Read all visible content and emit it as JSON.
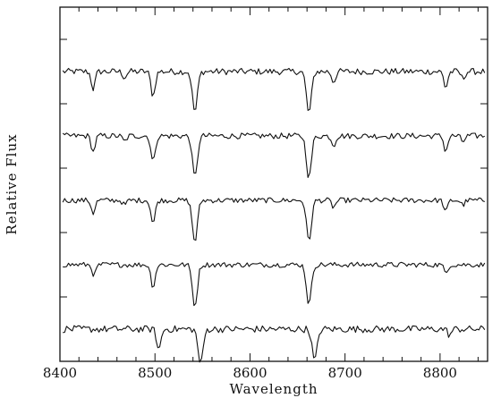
{
  "chart_data": {
    "type": "line",
    "title": "",
    "xlabel": "Wavelength",
    "ylabel": "Relative Flux",
    "xlim": [
      8400,
      8850
    ],
    "xticks": [
      8400,
      8500,
      8600,
      8700,
      8800
    ],
    "x_minor_step": 20,
    "ylim": [
      0,
      5.5
    ],
    "y_tick_count": 5,
    "grid": false,
    "legend": "none",
    "wavelength_step": 2,
    "continuum": 1.0,
    "series": [
      {
        "offset": 4.5,
        "noise": 0.055,
        "lines": [
          [
            8435,
            0.3,
            2
          ],
          [
            8468,
            0.1,
            2
          ],
          [
            8498,
            0.42,
            2.2
          ],
          [
            8542,
            0.7,
            2.6
          ],
          [
            8662,
            0.72,
            2.6
          ],
          [
            8688,
            0.18,
            2
          ],
          [
            8806,
            0.28,
            2
          ],
          [
            8824,
            0.12,
            2
          ]
        ]
      },
      {
        "offset": 3.5,
        "noise": 0.05,
        "lines": [
          [
            8435,
            0.28,
            2
          ],
          [
            8468,
            0.1,
            2
          ],
          [
            8498,
            0.45,
            2.2
          ],
          [
            8542,
            0.72,
            2.6
          ],
          [
            8662,
            0.72,
            2.6
          ],
          [
            8688,
            0.16,
            2
          ],
          [
            8806,
            0.26,
            2
          ],
          [
            8824,
            0.1,
            2
          ]
        ]
      },
      {
        "offset": 2.5,
        "noise": 0.045,
        "lines": [
          [
            8435,
            0.22,
            2
          ],
          [
            8468,
            0.08,
            2
          ],
          [
            8498,
            0.4,
            2.2
          ],
          [
            8542,
            0.72,
            2.6
          ],
          [
            8662,
            0.7,
            2.6
          ],
          [
            8688,
            0.12,
            2
          ],
          [
            8806,
            0.2,
            2
          ],
          [
            8824,
            0.08,
            2
          ]
        ]
      },
      {
        "offset": 1.5,
        "noise": 0.045,
        "lines": [
          [
            8436,
            0.18,
            2
          ],
          [
            8498,
            0.38,
            2.2
          ],
          [
            8542,
            0.72,
            2.6
          ],
          [
            8662,
            0.68,
            2.6
          ],
          [
            8806,
            0.14,
            2
          ]
        ]
      },
      {
        "offset": 0.5,
        "noise": 0.06,
        "lines": [
          [
            8504,
            0.36,
            2.2
          ],
          [
            8548,
            0.6,
            2.6
          ],
          [
            8668,
            0.55,
            2.6
          ],
          [
            8810,
            0.1,
            2
          ]
        ]
      }
    ]
  }
}
